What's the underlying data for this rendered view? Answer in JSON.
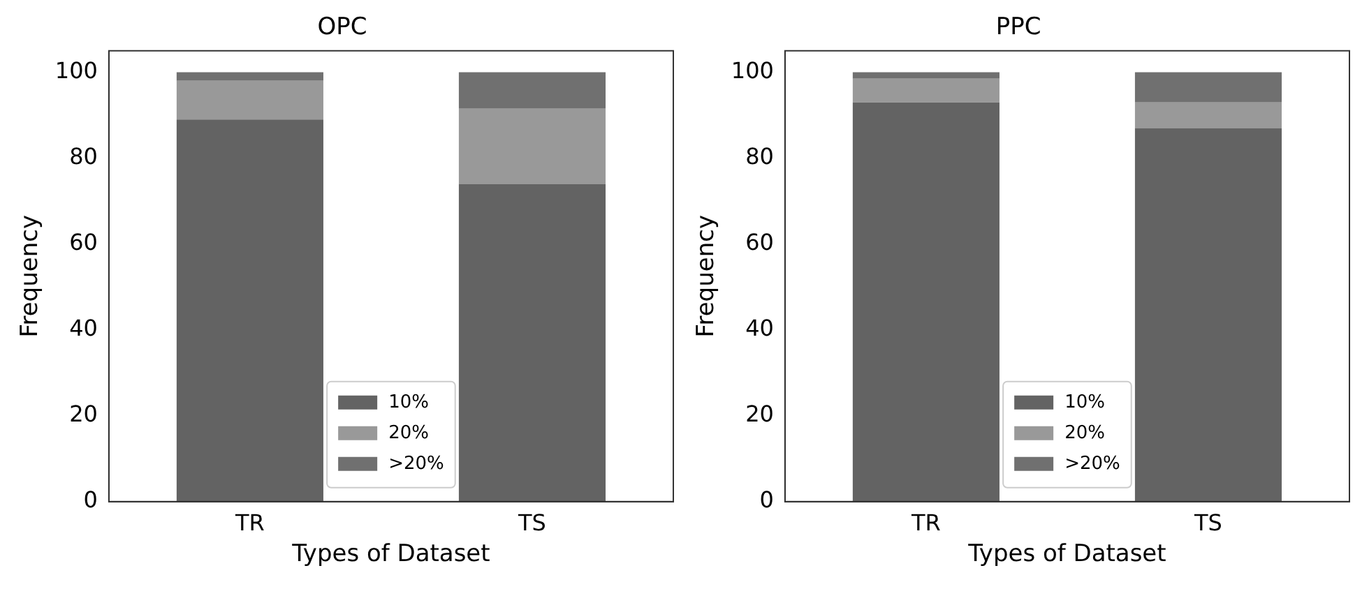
{
  "chart_data": [
    {
      "type": "bar",
      "title": "OPC",
      "xlabel": "Types of Dataset",
      "ylabel": "Frequency",
      "categories": [
        "TR",
        "TS"
      ],
      "stacked": true,
      "ylim": [
        0,
        105
      ],
      "yticks": [
        0,
        20,
        40,
        60,
        80,
        100
      ],
      "grid": false,
      "legend": "bottom",
      "series": [
        {
          "name": "10%",
          "color": "#636363",
          "values": [
            89,
            74
          ]
        },
        {
          "name": "20%",
          "color": "#999999",
          "values": [
            9,
            17.5
          ]
        },
        {
          "name": ">20%",
          "color": "#707070",
          "values": [
            2,
            8.5
          ]
        }
      ]
    },
    {
      "type": "bar",
      "title": "PPC",
      "xlabel": "Types of Dataset",
      "ylabel": "Frequency",
      "categories": [
        "TR",
        "TS"
      ],
      "stacked": true,
      "ylim": [
        0,
        105
      ],
      "yticks": [
        0,
        20,
        40,
        60,
        80,
        100
      ],
      "grid": false,
      "legend": "bottom",
      "series": [
        {
          "name": "10%",
          "color": "#636363",
          "values": [
            93,
            87
          ]
        },
        {
          "name": "20%",
          "color": "#999999",
          "values": [
            5.5,
            6
          ]
        },
        {
          "name": ">20%",
          "color": "#707070",
          "values": [
            1.5,
            7
          ]
        }
      ]
    }
  ]
}
